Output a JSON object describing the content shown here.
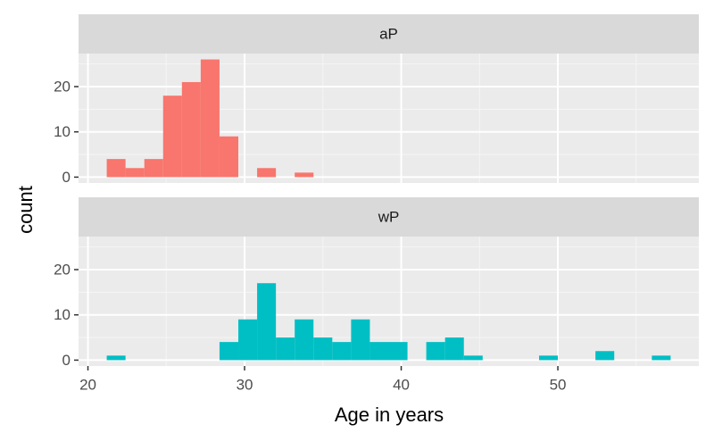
{
  "ylabel": "count",
  "xlabel": "Age in years",
  "chart_data": [
    {
      "type": "histogram",
      "title": "aP",
      "color": "#F8766D",
      "bins": [
        21.2,
        22.4,
        23.6,
        24.8,
        26.0,
        27.2,
        28.4,
        29.6,
        30.8,
        32.0,
        33.2,
        34.4,
        35.6,
        36.8,
        38.0,
        39.2,
        40.4,
        41.6,
        42.8,
        44.0,
        45.2,
        46.4,
        47.6,
        48.8,
        50.0,
        51.2,
        52.4,
        53.6,
        54.8,
        56.0,
        57.2
      ],
      "values": [
        4,
        2,
        4,
        18,
        21,
        26,
        9,
        0,
        2,
        0,
        1,
        0,
        0,
        0,
        0,
        0,
        0,
        0,
        0,
        0,
        0,
        0,
        0,
        0,
        0,
        0,
        0,
        0,
        0,
        0
      ],
      "xlim": [
        19.4,
        59.0
      ],
      "ylim": [
        -1.3,
        27.3
      ],
      "xticks": [
        20,
        30,
        40,
        50
      ],
      "yticks": [
        0,
        10,
        20
      ],
      "grid": true
    },
    {
      "type": "histogram",
      "title": "wP",
      "color": "#00BFC4",
      "bins": [
        21.2,
        22.4,
        23.6,
        24.8,
        26.0,
        27.2,
        28.4,
        29.6,
        30.8,
        32.0,
        33.2,
        34.4,
        35.6,
        36.8,
        38.0,
        39.2,
        40.4,
        41.6,
        42.8,
        44.0,
        45.2,
        46.4,
        47.6,
        48.8,
        50.0,
        51.2,
        52.4,
        53.6,
        54.8,
        56.0,
        57.2
      ],
      "values": [
        1,
        0,
        0,
        0,
        0,
        0,
        4,
        9,
        17,
        5,
        9,
        5,
        4,
        9,
        4,
        4,
        0,
        4,
        5,
        1,
        0,
        0,
        0,
        1,
        0,
        0,
        2,
        0,
        0,
        1
      ],
      "xlim": [
        19.4,
        59.0
      ],
      "ylim": [
        -1.3,
        27.3
      ],
      "xticks": [
        20,
        30,
        40,
        50
      ],
      "yticks": [
        0,
        10,
        20
      ],
      "grid": true
    }
  ]
}
